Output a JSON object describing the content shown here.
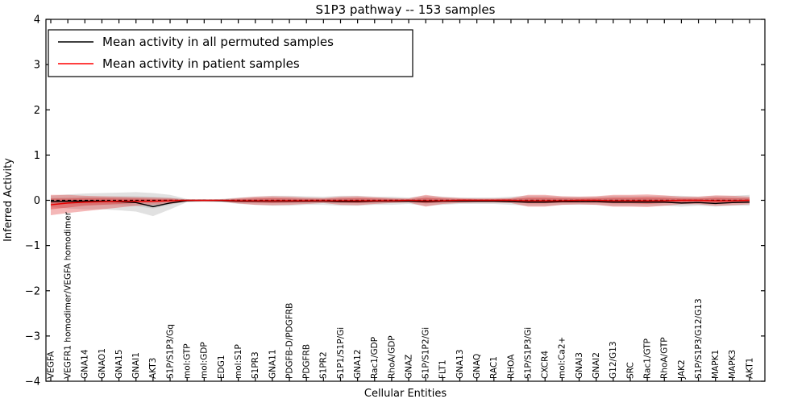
{
  "title": "S1P3 pathway -- 153 samples",
  "axes": {
    "xlabel": "Cellular Entities",
    "ylabel": "Inferred Activity"
  },
  "legend": {
    "position": "upper left",
    "entries": [
      {
        "label": "Mean activity in all permuted samples",
        "color": "#000000"
      },
      {
        "label": "Mean activity in patient samples",
        "color": "#ff0000"
      }
    ]
  },
  "colors": {
    "frame": "#000000",
    "permuted_band": "#aaaaaa",
    "patient_band": "#e03030",
    "permuted_mean_line": "#000000",
    "patient_mean_line": "#e60000",
    "zero_line": "#000000",
    "background": "#ffffff"
  },
  "chart_data": {
    "type": "area",
    "title": "S1P3 pathway -- 153 samples",
    "xlabel": "Cellular Entities",
    "ylabel": "Inferred Activity",
    "ylim": [
      -4,
      4
    ],
    "yticks": [
      -4,
      -3,
      -2,
      -1,
      0,
      1,
      2,
      3,
      4
    ],
    "grid": false,
    "legend_position": "upper left",
    "categories": [
      "VEGFA",
      "VEGFR1 homodimer/VEGFA homodimer",
      "GNA14",
      "GNAO1",
      "GNA15",
      "GNAI1",
      "AKT3",
      "S1P/S1P3/Gq",
      "mol:GTP",
      "mol:GDP",
      "EDG1",
      "mol:S1P",
      "S1PR3",
      "GNA11",
      "PDGFB-D/PDGFRB",
      "PDGFRB",
      "S1PR2",
      "S1P1/S1P/Gi",
      "GNA12",
      "Rac1/GDP",
      "RhoA/GDP",
      "GNAZ",
      "S1P/S1P2/Gi",
      "FLT1",
      "GNA13",
      "GNAQ",
      "RAC1",
      "RHOA",
      "S1P/S1P3/Gi",
      "CXCR4",
      "mol:Ca2+",
      "GNAI3",
      "GNAI2",
      "G12/G13",
      "SRC",
      "Rac1/GTP",
      "RhoA/GTP",
      "JAK2",
      "S1P/S1P3/G12/G13",
      "MAPK1",
      "MAPK3",
      "AKT1"
    ],
    "zero_line": {
      "y": 0,
      "style": "dashed",
      "color": "#000000"
    },
    "series": [
      {
        "name": "Mean activity in all permuted samples",
        "type": "line",
        "color": "#000000",
        "values": [
          -0.03,
          -0.02,
          -0.02,
          -0.02,
          -0.03,
          -0.05,
          -0.14,
          -0.06,
          -0.01,
          0.0,
          -0.01,
          -0.02,
          -0.02,
          -0.02,
          -0.02,
          -0.02,
          -0.02,
          -0.03,
          -0.03,
          -0.02,
          -0.02,
          -0.02,
          -0.03,
          -0.02,
          -0.02,
          -0.02,
          -0.02,
          -0.03,
          -0.04,
          -0.04,
          -0.03,
          -0.03,
          -0.03,
          -0.04,
          -0.04,
          -0.04,
          -0.04,
          -0.06,
          -0.05,
          -0.07,
          -0.05,
          -0.04
        ]
      },
      {
        "name": "Mean activity in patient samples",
        "type": "line",
        "color": "#e60000",
        "values": [
          -0.1,
          -0.06,
          -0.04,
          -0.03,
          -0.02,
          -0.02,
          -0.02,
          -0.01,
          0.0,
          0.0,
          0.0,
          -0.01,
          -0.01,
          -0.01,
          -0.01,
          -0.01,
          -0.01,
          -0.01,
          -0.01,
          -0.01,
          -0.01,
          0.0,
          -0.01,
          -0.01,
          0.0,
          0.0,
          0.0,
          0.0,
          -0.01,
          -0.01,
          -0.01,
          0.0,
          0.0,
          -0.01,
          -0.01,
          -0.01,
          -0.01,
          0.0,
          0.0,
          -0.01,
          -0.01,
          0.0
        ]
      },
      {
        "name": "Permuted samples spread (outer)",
        "type": "band",
        "color": "#aaaaaa",
        "opacity": 0.35,
        "upper": [
          0.1,
          0.13,
          0.15,
          0.16,
          0.17,
          0.18,
          0.16,
          0.12,
          0.03,
          0.02,
          0.03,
          0.06,
          0.08,
          0.1,
          0.1,
          0.09,
          0.08,
          0.1,
          0.1,
          0.08,
          0.08,
          0.06,
          0.1,
          0.08,
          0.06,
          0.06,
          0.06,
          0.08,
          0.1,
          0.1,
          0.08,
          0.08,
          0.08,
          0.1,
          0.1,
          0.1,
          0.1,
          0.1,
          0.08,
          0.1,
          0.1,
          0.12
        ],
        "lower": [
          -0.15,
          -0.18,
          -0.2,
          -0.2,
          -0.22,
          -0.25,
          -0.35,
          -0.2,
          -0.04,
          -0.03,
          -0.04,
          -0.08,
          -0.1,
          -0.12,
          -0.12,
          -0.1,
          -0.1,
          -0.12,
          -0.12,
          -0.1,
          -0.1,
          -0.08,
          -0.12,
          -0.1,
          -0.08,
          -0.08,
          -0.08,
          -0.1,
          -0.12,
          -0.12,
          -0.1,
          -0.1,
          -0.1,
          -0.12,
          -0.12,
          -0.12,
          -0.12,
          -0.14,
          -0.12,
          -0.14,
          -0.12,
          -0.12
        ]
      },
      {
        "name": "Permuted samples spread (inner)",
        "type": "band",
        "color": "#aaaaaa",
        "opacity": 0.35,
        "upper": [
          0.05,
          0.07,
          0.08,
          0.08,
          0.09,
          0.09,
          0.08,
          0.06,
          0.02,
          0.01,
          0.02,
          0.03,
          0.04,
          0.05,
          0.05,
          0.05,
          0.04,
          0.05,
          0.05,
          0.04,
          0.04,
          0.03,
          0.05,
          0.04,
          0.03,
          0.03,
          0.03,
          0.04,
          0.05,
          0.05,
          0.04,
          0.04,
          0.04,
          0.05,
          0.05,
          0.05,
          0.05,
          0.05,
          0.04,
          0.05,
          0.05,
          0.06
        ],
        "lower": [
          -0.08,
          -0.09,
          -0.1,
          -0.1,
          -0.11,
          -0.13,
          -0.18,
          -0.1,
          -0.02,
          -0.02,
          -0.02,
          -0.04,
          -0.05,
          -0.06,
          -0.06,
          -0.05,
          -0.05,
          -0.06,
          -0.06,
          -0.05,
          -0.05,
          -0.04,
          -0.06,
          -0.05,
          -0.04,
          -0.04,
          -0.04,
          -0.05,
          -0.06,
          -0.06,
          -0.05,
          -0.05,
          -0.05,
          -0.06,
          -0.06,
          -0.06,
          -0.06,
          -0.07,
          -0.06,
          -0.07,
          -0.06,
          -0.06
        ]
      },
      {
        "name": "Patient samples spread (outer)",
        "type": "band",
        "color": "#e03030",
        "opacity": 0.35,
        "upper": [
          0.12,
          0.12,
          0.1,
          0.09,
          0.08,
          0.07,
          0.06,
          0.05,
          0.02,
          0.02,
          0.02,
          0.05,
          0.08,
          0.09,
          0.08,
          0.06,
          0.05,
          0.08,
          0.09,
          0.07,
          0.05,
          0.04,
          0.12,
          0.07,
          0.05,
          0.04,
          0.04,
          0.05,
          0.12,
          0.12,
          0.09,
          0.08,
          0.09,
          0.12,
          0.12,
          0.13,
          0.11,
          0.08,
          0.08,
          0.11,
          0.1,
          0.08
        ],
        "lower": [
          -0.33,
          -0.28,
          -0.24,
          -0.2,
          -0.16,
          -0.12,
          -0.1,
          -0.08,
          -0.03,
          -0.03,
          -0.03,
          -0.07,
          -0.1,
          -0.11,
          -0.1,
          -0.08,
          -0.06,
          -0.1,
          -0.11,
          -0.08,
          -0.06,
          -0.05,
          -0.14,
          -0.08,
          -0.06,
          -0.05,
          -0.05,
          -0.06,
          -0.14,
          -0.14,
          -0.1,
          -0.09,
          -0.1,
          -0.14,
          -0.14,
          -0.15,
          -0.12,
          -0.09,
          -0.09,
          -0.12,
          -0.11,
          -0.09
        ]
      },
      {
        "name": "Patient samples spread (inner)",
        "type": "band",
        "color": "#e03030",
        "opacity": 0.4,
        "upper": [
          0.04,
          0.04,
          0.05,
          0.05,
          0.04,
          0.04,
          0.03,
          0.03,
          0.01,
          0.01,
          0.01,
          0.03,
          0.04,
          0.05,
          0.04,
          0.03,
          0.03,
          0.04,
          0.05,
          0.04,
          0.03,
          0.02,
          0.06,
          0.04,
          0.03,
          0.02,
          0.02,
          0.03,
          0.06,
          0.06,
          0.05,
          0.04,
          0.05,
          0.06,
          0.06,
          0.07,
          0.06,
          0.04,
          0.04,
          0.06,
          0.05,
          0.04
        ],
        "lower": [
          -0.2,
          -0.16,
          -0.12,
          -0.1,
          -0.08,
          -0.06,
          -0.05,
          -0.04,
          -0.02,
          -0.02,
          -0.02,
          -0.04,
          -0.05,
          -0.06,
          -0.05,
          -0.04,
          -0.03,
          -0.05,
          -0.06,
          -0.04,
          -0.03,
          -0.03,
          -0.07,
          -0.04,
          -0.03,
          -0.03,
          -0.03,
          -0.03,
          -0.07,
          -0.07,
          -0.05,
          -0.05,
          -0.05,
          -0.07,
          -0.07,
          -0.08,
          -0.06,
          -0.05,
          -0.05,
          -0.06,
          -0.06,
          -0.05
        ]
      }
    ]
  }
}
